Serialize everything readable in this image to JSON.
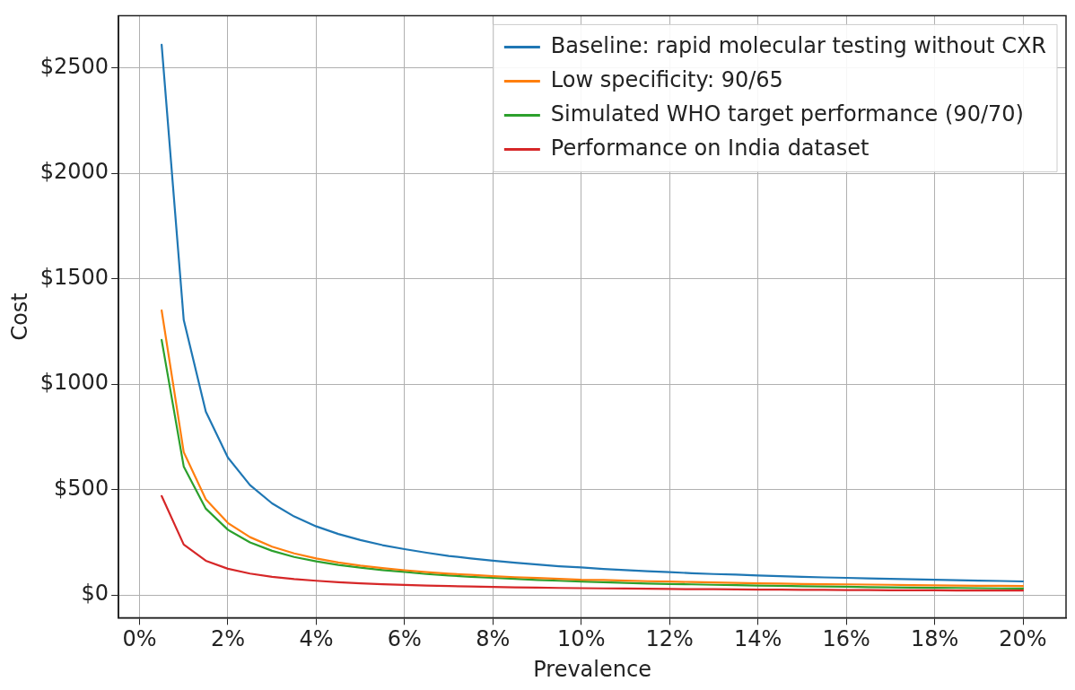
{
  "chart_data": {
    "type": "line",
    "xlabel": "Prevalence",
    "ylabel": "Cost",
    "x": [
      0.5,
      1,
      1.5,
      2,
      2.5,
      3,
      3.5,
      4,
      4.5,
      5,
      5.5,
      6,
      6.5,
      7,
      7.5,
      8,
      8.5,
      9,
      9.5,
      10,
      10.5,
      11,
      11.5,
      12,
      12.5,
      13,
      13.5,
      14,
      14.5,
      15,
      15.5,
      16,
      16.5,
      17,
      17.5,
      18,
      18.5,
      19,
      19.5,
      20
    ],
    "series": [
      {
        "name": "Baseline: rapid molecular testing without CXR",
        "color": "#1f77b4",
        "values": [
          2610,
          1305,
          870,
          652,
          522,
          435,
          373,
          326,
          290,
          261,
          237,
          218,
          201,
          186,
          174,
          163,
          154,
          145,
          137,
          131,
          124,
          119,
          113,
          109,
          104,
          100,
          97,
          93,
          90,
          87,
          84,
          82,
          79,
          77,
          75,
          73,
          71,
          69,
          67,
          65
        ]
      },
      {
        "name": "Low specificity: 90/65",
        "color": "#ff7f0e",
        "values": [
          1350,
          678,
          454,
          342,
          275,
          230,
          198,
          174,
          155,
          140,
          128,
          118,
          109,
          102,
          96,
          90,
          85,
          81,
          77,
          73,
          72,
          69,
          66,
          64,
          62,
          60,
          58,
          56,
          55,
          53,
          52,
          51,
          50,
          49,
          47,
          46,
          45,
          44,
          44,
          43
        ]
      },
      {
        "name": "Simulated WHO target performance (90/70)",
        "color": "#2ca02c",
        "values": [
          1210,
          610,
          410,
          310,
          250,
          210,
          181,
          160,
          143,
          130,
          119,
          110,
          100,
          93,
          87,
          82,
          77,
          72,
          68,
          64,
          61,
          58,
          55,
          53,
          51,
          49,
          47,
          45,
          44,
          42,
          41,
          40,
          38,
          37,
          36,
          35,
          34,
          33,
          32,
          31
        ]
      },
      {
        "name": "Performance on India dataset",
        "color": "#d62728",
        "values": [
          470,
          240,
          163,
          125,
          102,
          87,
          76,
          68,
          61,
          56,
          52,
          48,
          45,
          43,
          41,
          39,
          37,
          36,
          34,
          33,
          32,
          31,
          30,
          29,
          28,
          28,
          27,
          26,
          26,
          25,
          25,
          24,
          24,
          23,
          23,
          23,
          22,
          22,
          22,
          22
        ]
      }
    ],
    "xlim": [
      -0.475,
      20.975
    ],
    "xticks": [
      {
        "value": 0,
        "label": "0%"
      },
      {
        "value": 2,
        "label": "2%"
      },
      {
        "value": 4,
        "label": "4%"
      },
      {
        "value": 6,
        "label": "6%"
      },
      {
        "value": 8,
        "label": "8%"
      },
      {
        "value": 10,
        "label": "10%"
      },
      {
        "value": 12,
        "label": "12%"
      },
      {
        "value": 14,
        "label": "14%"
      },
      {
        "value": 16,
        "label": "16%"
      },
      {
        "value": 18,
        "label": "18%"
      },
      {
        "value": 20,
        "label": "20%"
      }
    ],
    "ylim": [
      -107,
      2748
    ],
    "yticks": [
      {
        "value": 0,
        "label": "$0"
      },
      {
        "value": 500,
        "label": "$500"
      },
      {
        "value": 1000,
        "label": "$1000"
      },
      {
        "value": 1500,
        "label": "$1500"
      },
      {
        "value": 2000,
        "label": "$2000"
      },
      {
        "value": 2500,
        "label": "$2500"
      }
    ],
    "grid": true,
    "legend": "top right",
    "marker": "none",
    "line_style": "solid"
  }
}
